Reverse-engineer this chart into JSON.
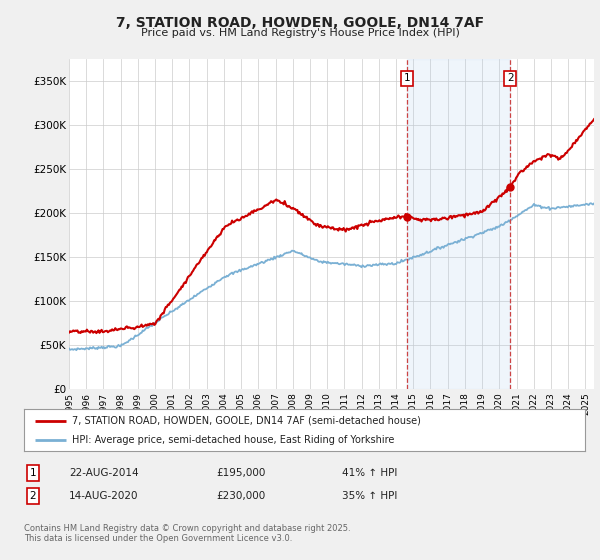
{
  "title": "7, STATION ROAD, HOWDEN, GOOLE, DN14 7AF",
  "subtitle": "Price paid vs. HM Land Registry's House Price Index (HPI)",
  "ylabel_values": [
    "£0",
    "£50K",
    "£100K",
    "£150K",
    "£200K",
    "£250K",
    "£300K",
    "£350K"
  ],
  "yticks": [
    0,
    50000,
    100000,
    150000,
    200000,
    250000,
    300000,
    350000
  ],
  "ylim": [
    0,
    375000
  ],
  "xlim_start": 1995.0,
  "xlim_end": 2025.5,
  "xticks": [
    1995,
    1996,
    1997,
    1998,
    1999,
    2000,
    2001,
    2002,
    2003,
    2004,
    2005,
    2006,
    2007,
    2008,
    2009,
    2010,
    2011,
    2012,
    2013,
    2014,
    2015,
    2016,
    2017,
    2018,
    2019,
    2020,
    2021,
    2022,
    2023,
    2024,
    2025
  ],
  "legend_line1": "7, STATION ROAD, HOWDEN, GOOLE, DN14 7AF (semi-detached house)",
  "legend_line2": "HPI: Average price, semi-detached house, East Riding of Yorkshire",
  "sale1_label": "1",
  "sale1_date": "22-AUG-2014",
  "sale1_price": "£195,000",
  "sale1_hpi": "41% ↑ HPI",
  "sale1_x": 2014.64,
  "sale1_y": 195000,
  "sale2_label": "2",
  "sale2_date": "14-AUG-2020",
  "sale2_price": "£230,000",
  "sale2_hpi": "35% ↑ HPI",
  "sale2_x": 2020.64,
  "sale2_y": 230000,
  "vline1_x": 2014.64,
  "vline2_x": 2020.64,
  "property_color": "#cc0000",
  "hpi_color": "#7ab0d4",
  "shade_color": "#ddeeff",
  "copyright_text": "Contains HM Land Registry data © Crown copyright and database right 2025.\nThis data is licensed under the Open Government Licence v3.0.",
  "background_color": "#f0f0f0",
  "plot_bg_color": "#ffffff"
}
